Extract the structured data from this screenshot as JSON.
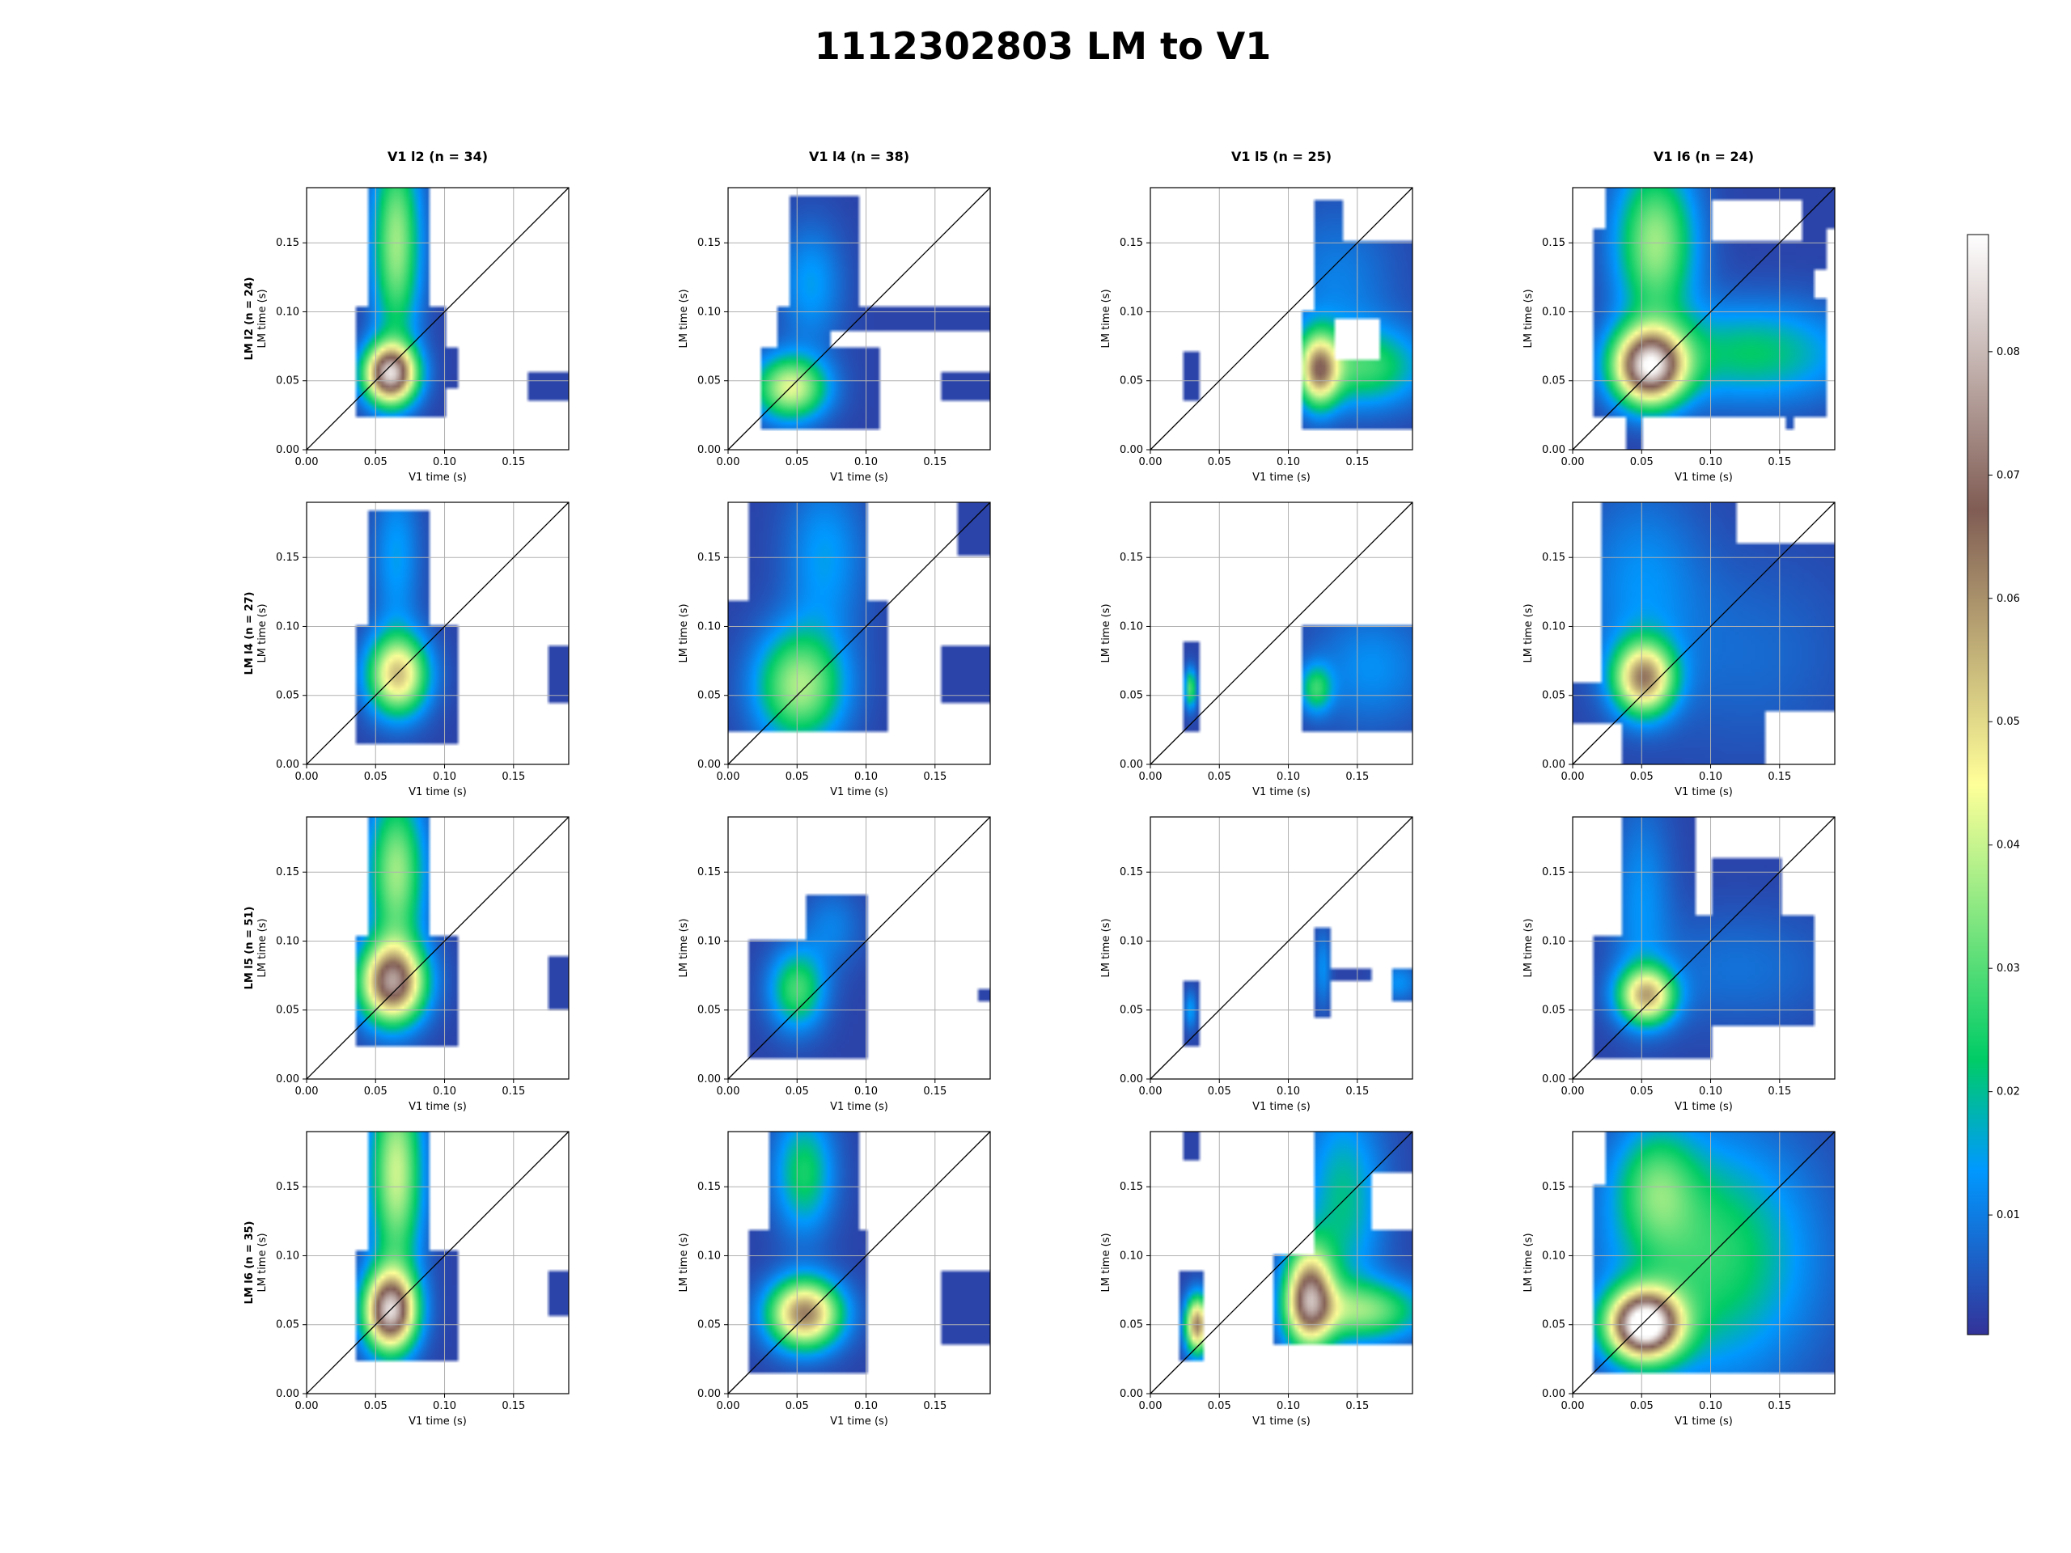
{
  "figure": {
    "title": "1112302803 LM to V1"
  },
  "chart_data": {
    "type": "heatmap",
    "title": "1112302803 LM to V1",
    "x_tick_labels": [
      "0.00",
      "0.05",
      "0.10",
      "0.15"
    ],
    "y_tick_labels": [
      "0.00",
      "0.05",
      "0.10",
      "0.15"
    ],
    "x_ticks": [
      0,
      0.05,
      0.1,
      0.15
    ],
    "y_ticks": [
      0,
      0.05,
      0.1,
      0.15
    ],
    "xlim": [
      0,
      0.19
    ],
    "ylim": [
      0,
      0.19
    ],
    "xlabel": "V1 time (s)",
    "ylabel": "LM time (s)",
    "grid": true,
    "diagonal_line": true,
    "colormap": "terrain",
    "colorbar": {
      "range": [
        0.0003,
        0.0895
      ],
      "tick_labels": [
        "0.01",
        "0.02",
        "0.03",
        "0.04",
        "0.05",
        "0.06",
        "0.07",
        "0.08"
      ],
      "ticks": [
        0.01,
        0.02,
        0.03,
        0.04,
        0.05,
        0.06,
        0.07,
        0.08
      ]
    },
    "columns": [
      "V1 l2 (n = 34)",
      "V1 l4 (n = 38)",
      "V1 l5 (n = 25)",
      "V1 l6 (n = 24)"
    ],
    "rows": [
      "LM l2 (n = 24)",
      "LM l4 (n = 27)",
      "LM l5 (n = 51)",
      "LM l6 (n = 35)"
    ],
    "panels": [
      [
        {
          "blobs": [
            [
              0.0605,
              0.055,
              0.013,
              0.015,
              0.078
            ],
            [
              0.065,
              0.15,
              0.012,
              0.05,
              0.034
            ]
          ],
          "support": [
            [
              0.035,
              0.025,
              0.1,
              0.105
            ],
            [
              0.045,
              0.105,
              0.09,
              0.19
            ],
            [
              0.095,
              0.045,
              0.11,
              0.075
            ],
            [
              0.16,
              0.035,
              0.19,
              0.055
            ]
          ]
        },
        {
          "blobs": [
            [
              0.0455,
              0.045,
              0.018,
              0.016,
              0.04
            ],
            [
              0.06,
              0.12,
              0.016,
              0.03,
              0.012
            ]
          ],
          "support": [
            [
              0.025,
              0.015,
              0.11,
              0.075
            ],
            [
              0.035,
              0.065,
              0.075,
              0.105
            ],
            [
              0.045,
              0.105,
              0.095,
              0.185
            ],
            [
              0.075,
              0.085,
              0.19,
              0.105
            ],
            [
              0.155,
              0.035,
              0.19,
              0.055
            ]
          ]
        },
        {
          "blobs": [
            [
              0.122,
              0.058,
              0.01,
              0.018,
              0.05
            ],
            [
              0.155,
              0.06,
              0.03,
              0.02,
              0.024
            ],
            [
              0.135,
              0.12,
              0.03,
              0.04,
              0.008
            ]
          ],
          "support": [
            [
              0.025,
              0.035,
              0.035,
              0.07
            ],
            [
              0.11,
              0.015,
              0.19,
              0.1
            ],
            [
              0.12,
              0.1,
              0.19,
              0.18
            ]
          ],
          "holes": [
            [
              0.135,
              0.065,
              0.165,
              0.095
            ],
            [
              0.14,
              0.15,
              0.19,
              0.18
            ]
          ]
        },
        {
          "blobs": [
            [
              0.0555,
              0.0605,
              0.018,
              0.019,
              0.08
            ],
            [
              0.06,
              0.15,
              0.02,
              0.04,
              0.034
            ],
            [
              0.13,
              0.07,
              0.05,
              0.025,
              0.02
            ]
          ],
          "support": [
            [
              0.015,
              0.025,
              0.185,
              0.16
            ],
            [
              0.025,
              0.16,
              0.19,
              0.19
            ],
            [
              0.04,
              0.0,
              0.05,
              0.025
            ],
            [
              0.155,
              0.015,
              0.16,
              0.025
            ]
          ],
          "holes": [
            [
              0.1,
              0.15,
              0.165,
              0.18
            ],
            [
              0.175,
              0.11,
              0.19,
              0.13
            ]
          ]
        }
      ],
      [
        {
          "blobs": [
            [
              0.066,
              0.065,
              0.015,
              0.02,
              0.05
            ],
            [
              0.065,
              0.15,
              0.012,
              0.04,
              0.012
            ]
          ],
          "support": [
            [
              0.035,
              0.015,
              0.11,
              0.1
            ],
            [
              0.045,
              0.095,
              0.09,
              0.185
            ],
            [
              0.175,
              0.045,
              0.19,
              0.085
            ]
          ]
        },
        {
          "blobs": [
            [
              0.052,
              0.057,
              0.022,
              0.028,
              0.035
            ],
            [
              0.07,
              0.15,
              0.02,
              0.04,
              0.012
            ]
          ],
          "support": [
            [
              0.0,
              0.025,
              0.115,
              0.12
            ],
            [
              0.015,
              0.12,
              0.1,
              0.19
            ],
            [
              0.155,
              0.045,
              0.19,
              0.085
            ],
            [
              0.165,
              0.15,
              0.19,
              0.19
            ]
          ]
        },
        {
          "blobs": [
            [
              0.029,
              0.055,
              0.003,
              0.01,
              0.028
            ],
            [
              0.12,
              0.055,
              0.008,
              0.012,
              0.022
            ],
            [
              0.16,
              0.07,
              0.03,
              0.03,
              0.01
            ]
          ],
          "support": [
            [
              0.025,
              0.025,
              0.035,
              0.09
            ],
            [
              0.11,
              0.025,
              0.19,
              0.1
            ]
          ]
        },
        {
          "blobs": [
            [
              0.0515,
              0.0625,
              0.015,
              0.018,
              0.056
            ],
            [
              0.05,
              0.13,
              0.03,
              0.05,
              0.01
            ],
            [
              0.13,
              0.08,
              0.05,
              0.05,
              0.005
            ]
          ],
          "support": [
            [
              0.0,
              0.0,
              0.19,
              0.19
            ]
          ],
          "holes": [
            [
              0.0,
              0.0,
              0.035,
              0.03
            ],
            [
              0.0,
              0.06,
              0.02,
              0.19
            ],
            [
              0.12,
              0.16,
              0.19,
              0.19
            ],
            [
              0.14,
              0.0,
              0.19,
              0.04
            ]
          ]
        }
      ],
      [
        {
          "blobs": [
            [
              0.062,
              0.07,
              0.016,
              0.02,
              0.07
            ],
            [
              0.065,
              0.15,
              0.014,
              0.04,
              0.034
            ]
          ],
          "support": [
            [
              0.035,
              0.025,
              0.11,
              0.105
            ],
            [
              0.045,
              0.105,
              0.09,
              0.19
            ],
            [
              0.175,
              0.05,
              0.19,
              0.09
            ]
          ]
        },
        {
          "blobs": [
            [
              0.05,
              0.065,
              0.014,
              0.02,
              0.026
            ],
            [
              0.075,
              0.11,
              0.015,
              0.02,
              0.008
            ]
          ],
          "support": [
            [
              0.015,
              0.015,
              0.1,
              0.1
            ],
            [
              0.055,
              0.07,
              0.1,
              0.135
            ],
            [
              0.18,
              0.055,
              0.19,
              0.065
            ]
          ]
        },
        {
          "blobs": [
            [
              0.029,
              0.05,
              0.003,
              0.01,
              0.012
            ],
            [
              0.125,
              0.08,
              0.004,
              0.02,
              0.01
            ],
            [
              0.18,
              0.07,
              0.01,
              0.01,
              0.01
            ]
          ],
          "support": [
            [
              0.025,
              0.025,
              0.035,
              0.07
            ],
            [
              0.12,
              0.045,
              0.13,
              0.11
            ],
            [
              0.13,
              0.07,
              0.16,
              0.08
            ],
            [
              0.175,
              0.055,
              0.19,
              0.08
            ]
          ]
        },
        {
          "blobs": [
            [
              0.0535,
              0.0605,
              0.014,
              0.014,
              0.05
            ],
            [
              0.05,
              0.13,
              0.015,
              0.05,
              0.01
            ],
            [
              0.12,
              0.08,
              0.05,
              0.03,
              0.006
            ]
          ],
          "support": [
            [
              0.015,
              0.015,
              0.1,
              0.105
            ],
            [
              0.035,
              0.09,
              0.09,
              0.19
            ],
            [
              0.09,
              0.04,
              0.175,
              0.12
            ],
            [
              0.1,
              0.12,
              0.15,
              0.16
            ]
          ],
          "holes": [
            [
              0.09,
              0.16,
              0.19,
              0.19
            ]
          ]
        }
      ],
      [
        {
          "blobs": [
            [
              0.0605,
              0.06,
              0.013,
              0.02,
              0.078
            ],
            [
              0.065,
              0.16,
              0.013,
              0.05,
              0.038
            ]
          ],
          "support": [
            [
              0.035,
              0.025,
              0.11,
              0.105
            ],
            [
              0.045,
              0.105,
              0.09,
              0.19
            ],
            [
              0.175,
              0.055,
              0.19,
              0.09
            ]
          ]
        },
        {
          "blobs": [
            [
              0.0555,
              0.058,
              0.018,
              0.017,
              0.06
            ],
            [
              0.055,
              0.16,
              0.015,
              0.03,
              0.022
            ]
          ],
          "support": [
            [
              0.015,
              0.015,
              0.1,
              0.12
            ],
            [
              0.03,
              0.12,
              0.095,
              0.19
            ],
            [
              0.155,
              0.035,
              0.19,
              0.09
            ]
          ]
        },
        {
          "blobs": [
            [
              0.034,
              0.05,
              0.006,
              0.014,
              0.06
            ],
            [
              0.115,
              0.07,
              0.012,
              0.025,
              0.065
            ],
            [
              0.155,
              0.06,
              0.03,
              0.015,
              0.03
            ],
            [
              0.14,
              0.14,
              0.02,
              0.05,
              0.018
            ]
          ],
          "support": [
            [
              0.02,
              0.025,
              0.04,
              0.09
            ],
            [
              0.09,
              0.035,
              0.19,
              0.1
            ],
            [
              0.12,
              0.1,
              0.19,
              0.19
            ],
            [
              0.025,
              0.17,
              0.035,
              0.19
            ]
          ],
          "holes": [
            [
              0.16,
              0.12,
              0.19,
              0.16
            ]
          ]
        },
        {
          "blobs": [
            [
              0.052,
              0.05,
              0.018,
              0.017,
              0.09
            ],
            [
              0.1,
              0.1,
              0.05,
              0.06,
              0.024
            ],
            [
              0.06,
              0.15,
              0.02,
              0.03,
              0.02
            ]
          ],
          "support": [
            [
              0.0,
              0.015,
              0.19,
              0.19
            ]
          ],
          "holes": [
            [
              0.0,
              0.0,
              0.015,
              0.19
            ],
            [
              0.0,
              0.15,
              0.025,
              0.19
            ]
          ]
        }
      ]
    ]
  }
}
